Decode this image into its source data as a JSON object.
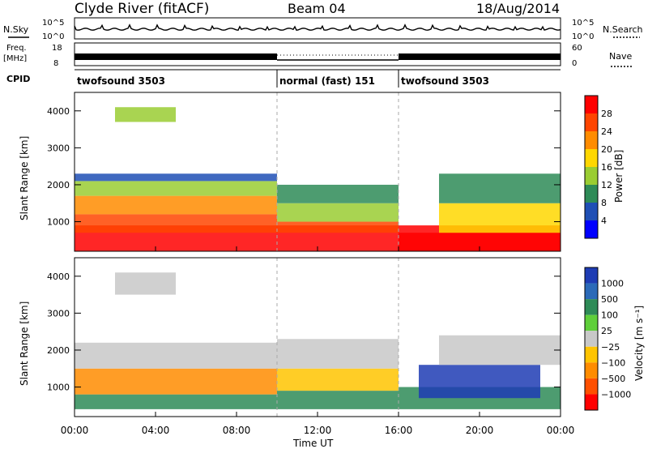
{
  "header": {
    "station": "Clyde River (fitACF)",
    "beam": "Beam 04",
    "date": "18/Aug/2014"
  },
  "noise_panel": {
    "left_label": "N.Sky",
    "left_ticks": [
      "10^5",
      "10^0"
    ],
    "right_label": "N.Search",
    "right_ticks": [
      "10^5",
      "10^0"
    ]
  },
  "freq_panel": {
    "left_label_1": "Freq.",
    "left_label_2": "[MHz]",
    "left_ticks": [
      "18",
      "8"
    ],
    "right_label": "Nave",
    "right_ticks": [
      "60",
      "0"
    ]
  },
  "cpid_panel": {
    "label": "CPID",
    "segments": [
      {
        "name": "twofsound 3503",
        "start_hour": 0,
        "end_hour": 10
      },
      {
        "name": "normal (fast) 151",
        "start_hour": 10,
        "end_hour": 16
      },
      {
        "name": "twofsound 3503",
        "start_hour": 16,
        "end_hour": 24
      }
    ]
  },
  "x_axis": {
    "label": "Time UT",
    "ticks": [
      "00:00",
      "04:00",
      "08:00",
      "12:00",
      "16:00",
      "20:00",
      "00:00"
    ]
  },
  "power_panel": {
    "ylabel": "Slant Range [km]",
    "yticks": [
      "1000",
      "2000",
      "3000",
      "4000"
    ],
    "colorbar_label": "Power [dB]",
    "colorbar_ticks": [
      "4",
      "8",
      "12",
      "16",
      "20",
      "24",
      "28"
    ],
    "colors": [
      "#0000ff",
      "#1f4fb5",
      "#2e8b57",
      "#9acd32",
      "#ffd700",
      "#ff8c00",
      "#ff4500",
      "#ff0000"
    ]
  },
  "velocity_panel": {
    "ylabel": "Slant Range [km]",
    "yticks": [
      "1000",
      "2000",
      "3000",
      "4000"
    ],
    "colorbar_label": "Velocity [m s⁻¹]",
    "colorbar_ticks": [
      "1000",
      "500",
      "100",
      "25",
      "−25",
      "−100",
      "−500",
      "−1000"
    ],
    "colors": [
      "#1e3cb4",
      "#2b6ab8",
      "#2e8b57",
      "#5fcf3a",
      "#c8c8c8",
      "#ffc400",
      "#ff8c00",
      "#ff5000",
      "#ff0000"
    ]
  },
  "chart_data": [
    {
      "type": "heatmap",
      "title": "Power",
      "x_range_hours": [
        0,
        24
      ],
      "y_range_km": [
        200,
        4500
      ],
      "cells": [
        {
          "t0": 0,
          "t1": 24,
          "r0": 200,
          "r1": 900,
          "class": 7
        },
        {
          "t0": 0,
          "t1": 10,
          "r0": 700,
          "r1": 1200,
          "class": 6
        },
        {
          "t0": 0,
          "t1": 10,
          "r0": 1200,
          "r1": 1700,
          "class": 5
        },
        {
          "t0": 0,
          "t1": 10,
          "r0": 1700,
          "r1": 2100,
          "class": 3
        },
        {
          "t0": 0,
          "t1": 10,
          "r0": 2100,
          "r1": 2300,
          "class": 1
        },
        {
          "t0": 10,
          "t1": 16,
          "r0": 700,
          "r1": 1000,
          "class": 6
        },
        {
          "t0": 10,
          "t1": 16,
          "r0": 1000,
          "r1": 1500,
          "class": 3
        },
        {
          "t0": 10,
          "t1": 16,
          "r0": 1500,
          "r1": 2000,
          "class": 2
        },
        {
          "t0": 16,
          "t1": 24,
          "r0": 200,
          "r1": 700,
          "class": 7
        },
        {
          "t0": 18,
          "t1": 24,
          "r0": 700,
          "r1": 1500,
          "class": 4
        },
        {
          "t0": 18,
          "t1": 24,
          "r0": 1500,
          "r1": 2300,
          "class": 2
        },
        {
          "t0": 2,
          "t1": 5,
          "r0": 3700,
          "r1": 4100,
          "class": 3
        }
      ]
    },
    {
      "type": "heatmap",
      "title": "Velocity",
      "x_range_hours": [
        0,
        24
      ],
      "y_range_km": [
        200,
        4500
      ],
      "cells": [
        {
          "t0": 0,
          "t1": 10,
          "r0": 400,
          "r1": 800,
          "class": 2
        },
        {
          "t0": 0,
          "t1": 10,
          "r0": 800,
          "r1": 1500,
          "class": 6
        },
        {
          "t0": 0,
          "t1": 10,
          "r0": 1500,
          "r1": 2200,
          "class": 4
        },
        {
          "t0": 10,
          "t1": 16,
          "r0": 400,
          "r1": 900,
          "class": 2
        },
        {
          "t0": 10,
          "t1": 16,
          "r0": 900,
          "r1": 1500,
          "class": 5
        },
        {
          "t0": 10,
          "t1": 16,
          "r0": 1500,
          "r1": 2300,
          "class": 4
        },
        {
          "t0": 16,
          "t1": 24,
          "r0": 400,
          "r1": 1000,
          "class": 2
        },
        {
          "t0": 17,
          "t1": 23,
          "r0": 700,
          "r1": 1600,
          "class": 0
        },
        {
          "t0": 18,
          "t1": 24,
          "r0": 1600,
          "r1": 2400,
          "class": 4
        },
        {
          "t0": 2,
          "t1": 5,
          "r0": 3500,
          "r1": 4100,
          "class": 4
        }
      ]
    }
  ]
}
